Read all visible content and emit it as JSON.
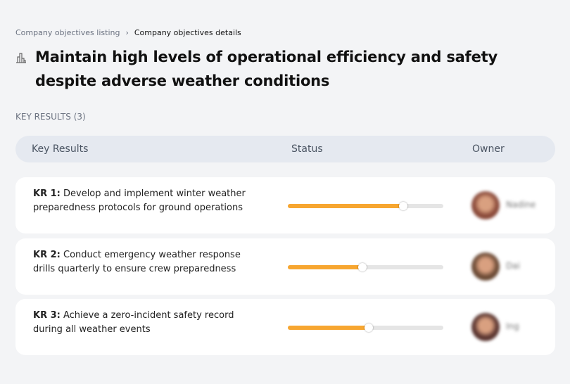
{
  "breadcrumb": {
    "parent": "Company objectives listing",
    "separator": "›",
    "current": "Company objectives details"
  },
  "objective": {
    "icon": "building-chart-icon",
    "title": "Maintain high levels of operational efficiency and safety despite adverse weather conditions"
  },
  "key_results_count_label": "KEY RESULTS (3)",
  "table": {
    "headers": {
      "key_results": "Key Results",
      "status": "Status",
      "owner": "Owner"
    }
  },
  "colors": {
    "progress": "#f7a630",
    "track": "#e5e5e5"
  },
  "rows": [
    {
      "label": "KR 1:",
      "text": "Develop and implement winter weather preparedness protocols for ground operations",
      "progress": 74,
      "owner": "Nadine",
      "avatar_color": "#8a4a3a"
    },
    {
      "label": "KR 2:",
      "text": "Conduct emergency weather response drills quarterly to ensure crew preparedness",
      "progress": 48,
      "owner": "Dai",
      "avatar_color": "#6b4a35"
    },
    {
      "label": "KR 3:",
      "text": "Achieve a zero-incident safety record during all weather events",
      "progress": 52,
      "owner": "Ing",
      "avatar_color": "#5a3530"
    }
  ]
}
